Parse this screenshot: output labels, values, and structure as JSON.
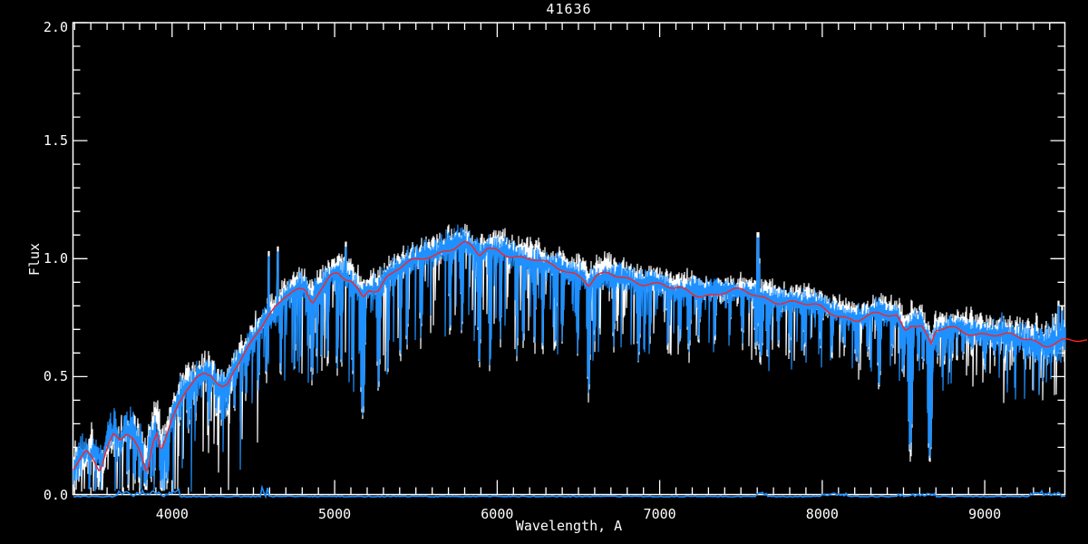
{
  "figure": {
    "title": "41636",
    "x_axis_label": "Wavelength, A",
    "y_axis_label": "Flux"
  },
  "colors": {
    "background": "#000000",
    "axis": "#ffffff",
    "observed_spectrum": "#1e90ff",
    "underlay_spectrum": "#ffffff",
    "model_fit": "#ff2121",
    "error_spectrum": "#1e90ff",
    "text": "#ffffff"
  },
  "chart_data": {
    "type": "line",
    "title": "41636",
    "xlabel": "Wavelength, A",
    "ylabel": "Flux",
    "xlim": [
      3390,
      9493
    ],
    "ylim": [
      0.0,
      2.0
    ],
    "grid": false,
    "legend": null,
    "x_ticks": {
      "major_values": [
        4000,
        5000,
        6000,
        7000,
        8000,
        9000
      ],
      "major_labels": [
        "4000",
        "5000",
        "6000",
        "7000",
        "8000",
        "9000"
      ],
      "minor_step": 100
    },
    "y_ticks": {
      "major_values": [
        0.0,
        0.5,
        1.0,
        1.5,
        2.0
      ],
      "major_labels": [
        "0.0",
        "0.5",
        "1.0",
        "1.5",
        "2.0"
      ],
      "minor_step": 0.1
    },
    "series": [
      {
        "name": "observed-spectrum-underlay",
        "color": "#ffffff",
        "style": "noisy-band"
      },
      {
        "name": "observed-spectrum",
        "color": "#1e90ff",
        "style": "noisy-band"
      },
      {
        "name": "best-fit-model",
        "color": "#ff2121",
        "style": "smooth-line"
      },
      {
        "name": "error-spectrum",
        "color": "#1e90ff",
        "style": "flat-line-near-zero"
      }
    ],
    "continuum_points": [
      [
        3390,
        0.1
      ],
      [
        3430,
        0.14
      ],
      [
        3470,
        0.18
      ],
      [
        3510,
        0.16
      ],
      [
        3555,
        0.11
      ],
      [
        3600,
        0.21
      ],
      [
        3640,
        0.26
      ],
      [
        3680,
        0.23
      ],
      [
        3720,
        0.26
      ],
      [
        3760,
        0.23
      ],
      [
        3800,
        0.17
      ],
      [
        3845,
        0.08
      ],
      [
        3880,
        0.22
      ],
      [
        3905,
        0.27
      ],
      [
        3933,
        0.19
      ],
      [
        3960,
        0.24
      ],
      [
        4000,
        0.33
      ],
      [
        4040,
        0.4
      ],
      [
        4080,
        0.44
      ],
      [
        4120,
        0.46
      ],
      [
        4160,
        0.49
      ],
      [
        4200,
        0.51
      ],
      [
        4240,
        0.5
      ],
      [
        4280,
        0.46
      ],
      [
        4310,
        0.45
      ],
      [
        4340,
        0.47
      ],
      [
        4380,
        0.54
      ],
      [
        4420,
        0.58
      ],
      [
        4460,
        0.62
      ],
      [
        4500,
        0.66
      ],
      [
        4540,
        0.7
      ],
      [
        4580,
        0.74
      ],
      [
        4620,
        0.77
      ],
      [
        4660,
        0.8
      ],
      [
        4700,
        0.84
      ],
      [
        4740,
        0.87
      ],
      [
        4780,
        0.88
      ],
      [
        4820,
        0.87
      ],
      [
        4861,
        0.82
      ],
      [
        4900,
        0.86
      ],
      [
        4940,
        0.89
      ],
      [
        4980,
        0.92
      ],
      [
        5020,
        0.93
      ],
      [
        5060,
        0.91
      ],
      [
        5100,
        0.9
      ],
      [
        5140,
        0.87
      ],
      [
        5175,
        0.84
      ],
      [
        5210,
        0.88
      ],
      [
        5270,
        0.87
      ],
      [
        5320,
        0.92
      ],
      [
        5380,
        0.95
      ],
      [
        5440,
        0.97
      ],
      [
        5500,
        0.99
      ],
      [
        5560,
        1.01
      ],
      [
        5620,
        1.02
      ],
      [
        5680,
        1.04
      ],
      [
        5740,
        1.05
      ],
      [
        5800,
        1.06
      ],
      [
        5850,
        1.04
      ],
      [
        5890,
        1.01
      ],
      [
        5940,
        1.04
      ],
      [
        6000,
        1.04
      ],
      [
        6080,
        1.02
      ],
      [
        6160,
        1.0
      ],
      [
        6240,
        0.99
      ],
      [
        6320,
        0.97
      ],
      [
        6400,
        0.96
      ],
      [
        6480,
        0.94
      ],
      [
        6530,
        0.92
      ],
      [
        6563,
        0.89
      ],
      [
        6610,
        0.92
      ],
      [
        6680,
        0.93
      ],
      [
        6760,
        0.92
      ],
      [
        6840,
        0.91
      ],
      [
        6920,
        0.9
      ],
      [
        7000,
        0.89
      ],
      [
        7080,
        0.87
      ],
      [
        7160,
        0.86
      ],
      [
        7240,
        0.85
      ],
      [
        7320,
        0.85
      ],
      [
        7400,
        0.86
      ],
      [
        7480,
        0.86
      ],
      [
        7560,
        0.85
      ],
      [
        7610,
        0.84
      ],
      [
        7680,
        0.83
      ],
      [
        7760,
        0.82
      ],
      [
        7840,
        0.81
      ],
      [
        7920,
        0.8
      ],
      [
        8000,
        0.79
      ],
      [
        8080,
        0.77
      ],
      [
        8160,
        0.75
      ],
      [
        8210,
        0.74
      ],
      [
        8280,
        0.75
      ],
      [
        8350,
        0.76
      ],
      [
        8420,
        0.76
      ],
      [
        8460,
        0.76
      ],
      [
        8510,
        0.7
      ],
      [
        8550,
        0.73
      ],
      [
        8610,
        0.72
      ],
      [
        8670,
        0.63
      ],
      [
        8700,
        0.69
      ],
      [
        8760,
        0.7
      ],
      [
        8830,
        0.7
      ],
      [
        8900,
        0.69
      ],
      [
        8970,
        0.685
      ],
      [
        9040,
        0.68
      ],
      [
        9120,
        0.67
      ],
      [
        9200,
        0.665
      ],
      [
        9280,
        0.66
      ],
      [
        9360,
        0.64
      ],
      [
        9420,
        0.645
      ],
      [
        9493,
        0.65
      ],
      [
        9600,
        0.645
      ]
    ],
    "absorption_features": [
      [
        3727,
        0.05,
        2
      ],
      [
        3770,
        0.06,
        2
      ],
      [
        3798,
        0.05,
        2
      ],
      [
        3835,
        0.04,
        3
      ],
      [
        3870,
        0.06,
        2
      ],
      [
        3889,
        0.05,
        2
      ],
      [
        3933,
        0.03,
        3
      ],
      [
        3969,
        0.05,
        3
      ],
      [
        4045,
        0.3,
        2
      ],
      [
        4101,
        0.28,
        3
      ],
      [
        4144,
        0.34,
        2
      ],
      [
        4226,
        0.3,
        2
      ],
      [
        4271,
        0.35,
        2
      ],
      [
        4305,
        0.33,
        3
      ],
      [
        4340,
        0.36,
        3
      ],
      [
        4383,
        0.36,
        2
      ],
      [
        4455,
        0.42,
        2
      ],
      [
        4531,
        0.45,
        2
      ],
      [
        4580,
        0.5,
        2
      ],
      [
        4668,
        0.52,
        2
      ],
      [
        4754,
        0.55,
        2
      ],
      [
        4861,
        0.5,
        3
      ],
      [
        4891,
        0.58,
        2
      ],
      [
        4920,
        0.56,
        2
      ],
      [
        4957,
        0.56,
        2
      ],
      [
        5015,
        0.52,
        2
      ],
      [
        5041,
        0.55,
        2
      ],
      [
        5110,
        0.52,
        2
      ],
      [
        5172,
        0.34,
        4
      ],
      [
        5270,
        0.46,
        3
      ],
      [
        5328,
        0.55,
        2
      ],
      [
        5404,
        0.58,
        2
      ],
      [
        5445,
        0.62,
        2
      ],
      [
        5530,
        0.65,
        2
      ],
      [
        5710,
        0.68,
        2
      ],
      [
        5782,
        0.7,
        2
      ],
      [
        5890,
        0.56,
        3
      ],
      [
        5955,
        0.52,
        2
      ],
      [
        6020,
        0.65,
        2
      ],
      [
        6122,
        0.6,
        2
      ],
      [
        6162,
        0.64,
        2
      ],
      [
        6230,
        0.62,
        2
      ],
      [
        6280,
        0.6,
        2
      ],
      [
        6358,
        0.62,
        2
      ],
      [
        6400,
        0.65,
        2
      ],
      [
        6495,
        0.6,
        2
      ],
      [
        6563,
        0.43,
        3
      ],
      [
        6600,
        0.63,
        2
      ],
      [
        6717,
        0.62,
        2
      ],
      [
        6870,
        0.58,
        3
      ],
      [
        6940,
        0.65,
        2
      ],
      [
        7050,
        0.62,
        2
      ],
      [
        7120,
        0.65,
        2
      ],
      [
        7180,
        0.6,
        3
      ],
      [
        7240,
        0.64,
        2
      ],
      [
        7340,
        0.66,
        2
      ],
      [
        7430,
        0.68,
        2
      ],
      [
        7510,
        0.66,
        2
      ],
      [
        7593,
        0.62,
        3
      ],
      [
        7621,
        0.58,
        4
      ],
      [
        7665,
        0.6,
        3
      ],
      [
        7730,
        0.64,
        2
      ],
      [
        7800,
        0.63,
        2
      ],
      [
        7890,
        0.62,
        2
      ],
      [
        7990,
        0.64,
        2
      ],
      [
        8060,
        0.6,
        2
      ],
      [
        8135,
        0.62,
        2
      ],
      [
        8210,
        0.57,
        3
      ],
      [
        8280,
        0.6,
        2
      ],
      [
        8350,
        0.46,
        3
      ],
      [
        8430,
        0.6,
        2
      ],
      [
        8498,
        0.52,
        3
      ],
      [
        8542,
        0.17,
        4
      ],
      [
        8590,
        0.58,
        2
      ],
      [
        8620,
        0.55,
        2
      ],
      [
        8662,
        0.15,
        4
      ],
      [
        8710,
        0.58,
        2
      ],
      [
        8750,
        0.56,
        2
      ],
      [
        8800,
        0.6,
        2
      ],
      [
        8865,
        0.58,
        2
      ],
      [
        8920,
        0.6,
        2
      ],
      [
        9000,
        0.55,
        3
      ],
      [
        9060,
        0.58,
        2
      ],
      [
        9120,
        0.58,
        2
      ],
      [
        9180,
        0.57,
        2
      ],
      [
        9240,
        0.6,
        2
      ],
      [
        9310,
        0.58,
        2
      ],
      [
        9380,
        0.55,
        2
      ],
      [
        9440,
        0.58,
        2
      ]
    ],
    "emission_up_spikes": [
      [
        4595,
        1.01
      ],
      [
        4650,
        1.03
      ],
      [
        5070,
        1.05
      ],
      [
        7605,
        1.09
      ],
      [
        7612,
        0.98
      ],
      [
        9455,
        0.8
      ],
      [
        9476,
        0.78
      ]
    ],
    "noise": {
      "seed_underlay": 912,
      "seed_main": 313,
      "underlay_offset": 0.022,
      "spike_probability": 0.3,
      "band_halfwidth": [
        [
          3390,
          0.055
        ],
        [
          4300,
          0.05
        ],
        [
          5000,
          0.045
        ],
        [
          6500,
          0.04
        ],
        [
          7500,
          0.035
        ],
        [
          8800,
          0.038
        ],
        [
          9100,
          0.05
        ],
        [
          9493,
          0.08
        ]
      ],
      "wobble_step": [
        [
          3390,
          0.05
        ],
        [
          3990,
          0.05
        ],
        [
          4010,
          0.012
        ],
        [
          9493,
          0.012
        ]
      ],
      "spike_max_depth": [
        [
          3390,
          0.28
        ],
        [
          4000,
          0.5
        ],
        [
          5400,
          0.42
        ],
        [
          7000,
          0.3
        ],
        [
          9000,
          0.24
        ],
        [
          9493,
          0.22
        ]
      ]
    },
    "error_spectrum": {
      "baseline_flux": -0.01,
      "jitter_flux": 0.004,
      "bumps": [
        [
          3640,
          4050,
          0.03
        ],
        [
          4548,
          4572,
          0.042
        ],
        [
          4576,
          4598,
          0.038
        ],
        [
          7590,
          7660,
          0.018
        ],
        [
          7990,
          8160,
          0.014
        ],
        [
          8450,
          8700,
          0.012
        ],
        [
          9280,
          9470,
          0.022
        ]
      ]
    }
  }
}
